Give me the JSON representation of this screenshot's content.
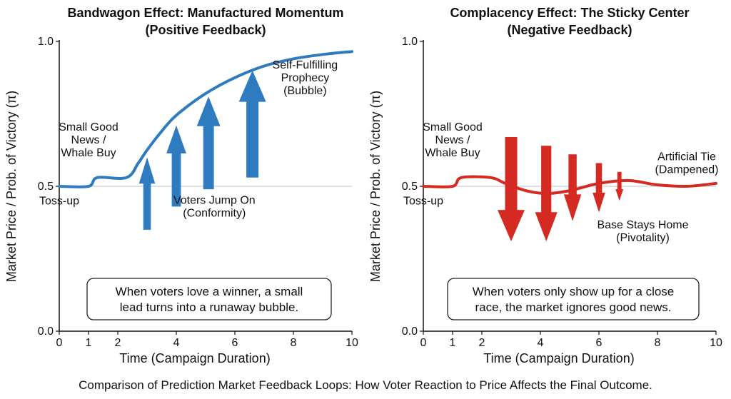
{
  "caption": "Comparison of Prediction Market Feedback Loops: How Voter Reaction to Price Affects the Final Outcome.",
  "chart_data": [
    {
      "type": "line",
      "title": "Bandwagon Effect: Manufactured Momentum",
      "subtitle": "(Positive Feedback)",
      "xlabel": "Time (Campaign Duration)",
      "ylabel": "Market Price / Prob. of Victory (π)",
      "xlim": [
        0,
        10
      ],
      "ylim": [
        0,
        1
      ],
      "x_ticks": [
        "0",
        "1",
        "2",
        "4",
        "6",
        "8",
        "10"
      ],
      "y_ticks": [
        "0.0",
        "0.5",
        "1.0"
      ],
      "reference_line": 0.5,
      "grid": false,
      "color": "#2f7bbf",
      "series": [
        {
          "x": [
            0,
            1,
            1.3,
            2.3,
            2.7,
            3,
            3.5,
            4,
            5,
            6,
            7,
            8,
            9,
            10
          ],
          "values": [
            0.5,
            0.5,
            0.53,
            0.53,
            0.58,
            0.625,
            0.69,
            0.745,
            0.82,
            0.875,
            0.915,
            0.94,
            0.955,
            0.965
          ]
        }
      ],
      "arrows": [
        {
          "direction": "up",
          "x": 3.0,
          "from": 0.35,
          "to": 0.6
        },
        {
          "direction": "up",
          "x": 4.0,
          "from": 0.43,
          "to": 0.71
        },
        {
          "direction": "up",
          "x": 5.1,
          "from": 0.49,
          "to": 0.81
        },
        {
          "direction": "up",
          "x": 6.6,
          "from": 0.53,
          "to": 0.9
        }
      ],
      "annotations": [
        {
          "lines": [
            "Toss-up"
          ],
          "x": 0.0,
          "y": 0.45
        },
        {
          "lines": [
            "Small Good",
            "News /",
            "Whale Buy"
          ],
          "x": 1.0,
          "y": 0.66
        },
        {
          "lines": [
            "Voters Jump On",
            "(Conformity)"
          ],
          "x": 5.3,
          "y": 0.43
        },
        {
          "lines": [
            "Self-Fulfilling",
            "Prophecy",
            "(Bubble)"
          ],
          "x": 8.4,
          "y": 0.875
        }
      ],
      "note": "When voters love a winner, a small lead turns into a runaway bubble."
    },
    {
      "type": "line",
      "title": "Complacency Effect: The Sticky Center",
      "subtitle": "(Negative Feedback)",
      "xlabel": "Time (Campaign Duration)",
      "ylabel": "Market Price / Prob. of Victory (π)",
      "xlim": [
        0,
        10
      ],
      "ylim": [
        0,
        1
      ],
      "x_ticks": [
        "0",
        "1",
        "2",
        "4",
        "6",
        "8",
        "10"
      ],
      "y_ticks": [
        "0.0",
        "0.5",
        "1.0"
      ],
      "reference_line": 0.5,
      "grid": false,
      "color": "#d42a22",
      "series": [
        {
          "x": [
            0,
            1,
            1.3,
            2.3,
            2.8,
            3.5,
            4.2,
            5,
            6,
            7,
            8,
            9,
            10
          ],
          "values": [
            0.5,
            0.5,
            0.53,
            0.53,
            0.51,
            0.485,
            0.475,
            0.485,
            0.51,
            0.52,
            0.505,
            0.5,
            0.51
          ]
        }
      ],
      "arrows": [
        {
          "direction": "down",
          "x": 3.0,
          "from": 0.67,
          "to": 0.31
        },
        {
          "direction": "down",
          "x": 4.2,
          "from": 0.64,
          "to": 0.31
        },
        {
          "direction": "down",
          "x": 5.1,
          "from": 0.61,
          "to": 0.38
        },
        {
          "direction": "down",
          "x": 6.0,
          "from": 0.58,
          "to": 0.41
        },
        {
          "direction": "down",
          "x": 6.7,
          "from": 0.55,
          "to": 0.45
        }
      ],
      "annotations": [
        {
          "lines": [
            "Toss-up"
          ],
          "x": 0.0,
          "y": 0.45
        },
        {
          "lines": [
            "Small Good",
            "News /",
            "Whale Buy"
          ],
          "x": 1.0,
          "y": 0.66
        },
        {
          "lines": [
            "Base Stays Home",
            "(Pivotality)"
          ],
          "x": 7.5,
          "y": 0.345
        },
        {
          "lines": [
            "Artificial Tie",
            "(Dampened)"
          ],
          "x": 9.0,
          "y": 0.58
        }
      ],
      "note": "When voters only show up for a close race, the market ignores good news."
    }
  ]
}
